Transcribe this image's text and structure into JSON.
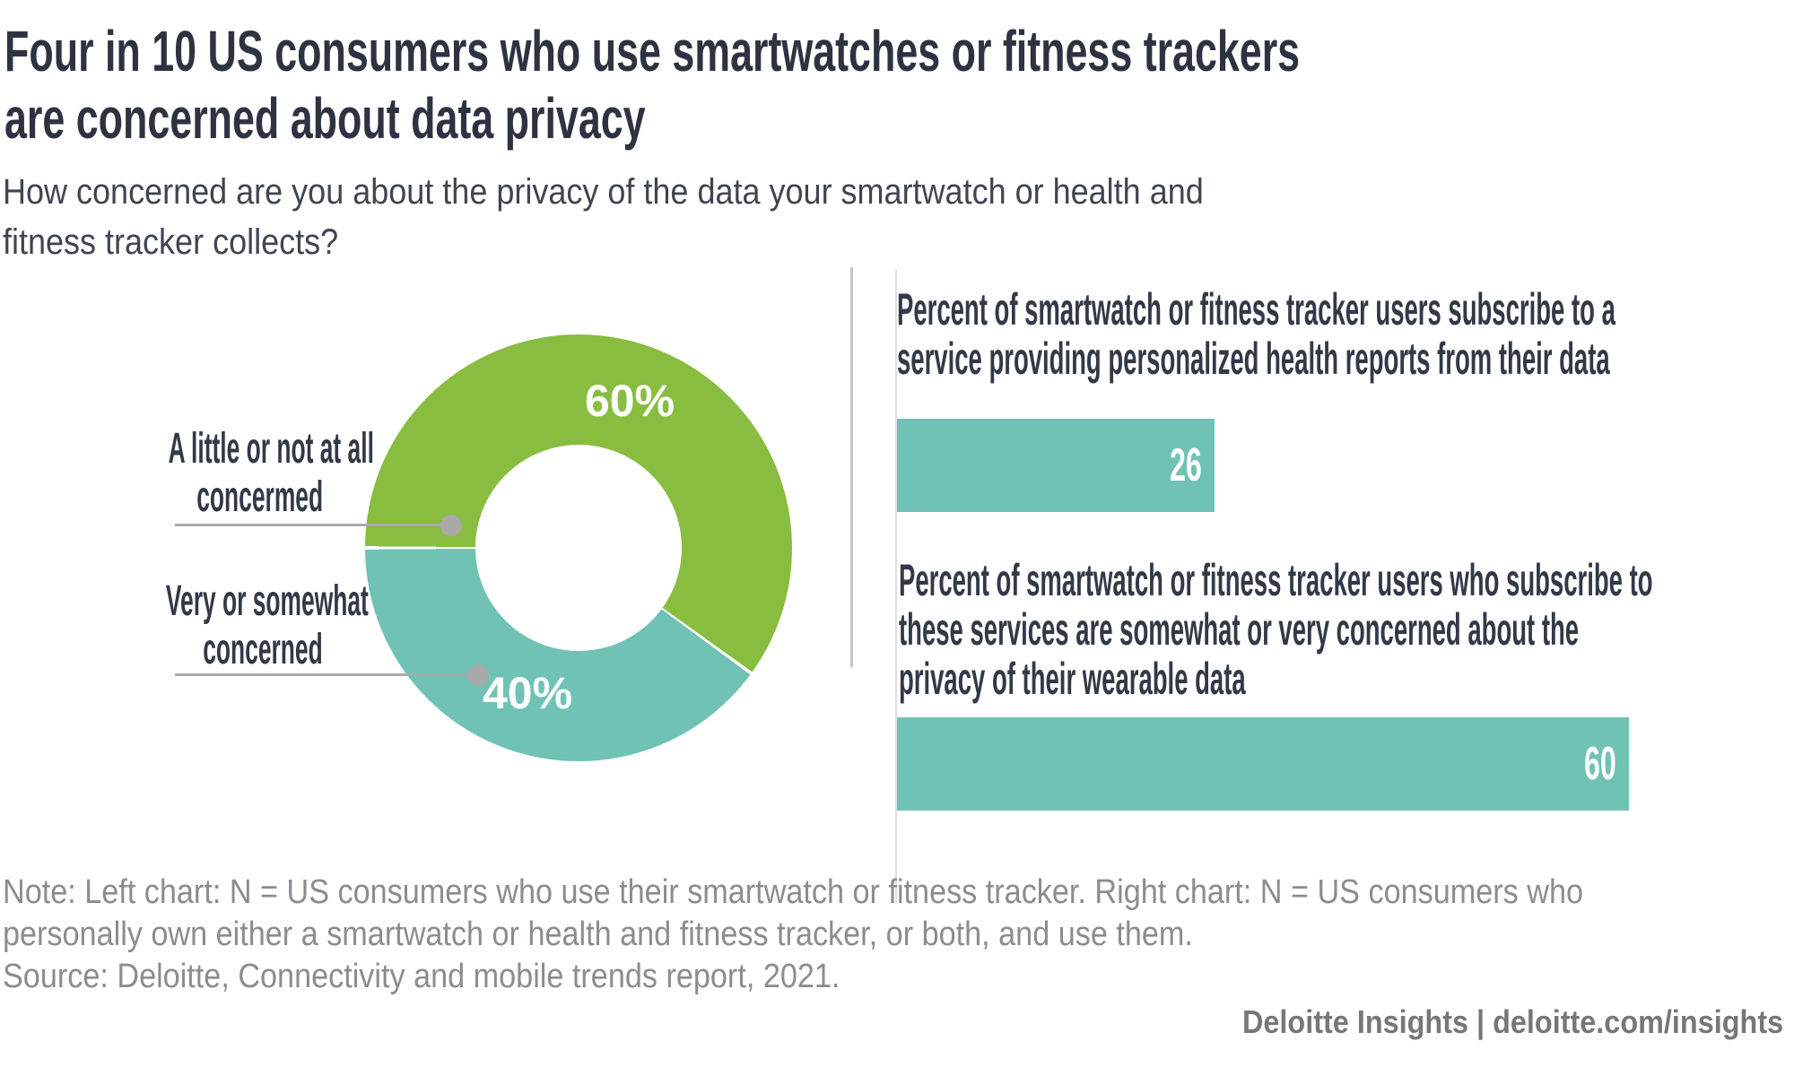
{
  "title": {
    "line1": "Four in 10 US consumers who use smartwatches or fitness trackers",
    "line2": "are concerned about data privacy"
  },
  "subtitle": {
    "line1": "How concerned are you about the privacy of the data your smartwatch or health and",
    "line2": "fitness tracker collects?"
  },
  "donut": {
    "label1_line1": "A little or not at all",
    "label1_line2": "concermed",
    "label2_line1": "Very or somewhat",
    "label2_line2": "concerned",
    "value1_label": "60%",
    "value2_label": "40%"
  },
  "bars": {
    "bar1_label_line1": "Percent of smartwatch or fitness tracker users subscribe to a",
    "bar1_label_line2": "service providing personalized health reports from their data",
    "bar1_value_label": "26",
    "bar2_label_line1": "Percent of smartwatch or fitness tracker users who subscribe to",
    "bar2_label_line2_pre": "these services are ",
    "bar2_label_line2_bold": "somewhat or very concerned",
    "bar2_label_line2_post": " about the",
    "bar2_label_line3": "privacy of their wearable data",
    "bar2_value_label": "60"
  },
  "note": {
    "line1": "Note: Left chart: N = US consumers who use their smartwatch or fitness tracker. Right chart: N = US consumers who",
    "line2": "personally own either a smartwatch or health and fitness tracker, or both, and use them.",
    "line3": "Source: Deloitte, Connectivity and mobile trends report, 2021."
  },
  "footer": "Deloitte Insights | deloitte.com/insights",
  "colors": {
    "title_text": "#2d3340",
    "subtitle_text": "#3f4551",
    "label_text": "#323947",
    "green": "#88bd40",
    "teal": "#6fc2b4",
    "leader_gray": "#a9a9a9",
    "divider_gray": "#c5c5c5",
    "note_gray": "#8a8d90",
    "footer_gray": "#75787b"
  },
  "chart_data": [
    {
      "type": "pie",
      "subtype": "donut",
      "title": "How concerned are you about the privacy of the data your smartwatch or health and fitness tracker collects?",
      "labels": [
        "A little or not at all concermed",
        "Very or somewhat concerned"
      ],
      "values": [
        60,
        40
      ],
      "value_labels": [
        "60%",
        "40%"
      ],
      "colors": [
        "#88bd40",
        "#6fc2b4"
      ],
      "start_angle_deg_from_top": 270,
      "direction": "clockwise",
      "inner_radius_ratio": 0.48,
      "legend_position": "left-leader-lines"
    },
    {
      "type": "bar",
      "orientation": "horizontal",
      "categories": [
        "Percent of smartwatch or fitness tracker users subscribe to a service providing personalized health reports from their data",
        "Percent of smartwatch or fitness tracker users who subscribe to these services are somewhat or very concerned about the privacy of their wearable data"
      ],
      "values": [
        26,
        60
      ],
      "value_labels": [
        "26",
        "60"
      ],
      "bar_color": "#6fc2b4",
      "axis": "none",
      "grid": false
    }
  ]
}
